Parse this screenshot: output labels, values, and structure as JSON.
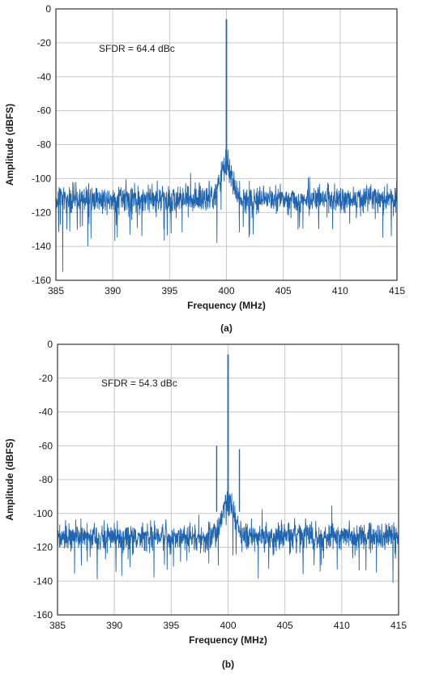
{
  "chart_data": [
    {
      "type": "line",
      "caption": "(a)",
      "xlabel": "Frequency (MHz)",
      "ylabel": "Amplitude (dBFS)",
      "xlim": [
        385,
        415
      ],
      "ylim": [
        -160,
        0
      ],
      "xticks": [
        385,
        390,
        395,
        400,
        405,
        410,
        415
      ],
      "yticks": [
        0,
        -20,
        -40,
        -60,
        -80,
        -100,
        -120,
        -140,
        -160
      ],
      "grid": true,
      "annotation": "SFDR = 64.4 dBc",
      "noise_floor_dbfs": -112,
      "noise_spread_db": 5,
      "hump": {
        "center": 400,
        "peak_dbfs": -92,
        "width_mhz": 0.7
      },
      "peaks": [
        {
          "x": 400,
          "y": -6
        }
      ],
      "dips": [
        {
          "x": 385.6,
          "y": -155
        },
        {
          "x": 387.8,
          "y": -140
        },
        {
          "x": 414.5,
          "y": -134
        }
      ],
      "color": "#1f64ae"
    },
    {
      "type": "line",
      "caption": "(b)",
      "xlabel": "Frequency (MHz)",
      "ylabel": "Amplitude (dBFS)",
      "xlim": [
        385,
        415
      ],
      "ylim": [
        -160,
        0
      ],
      "xticks": [
        385,
        390,
        395,
        400,
        405,
        410,
        415
      ],
      "yticks": [
        0,
        -20,
        -40,
        -60,
        -80,
        -100,
        -120,
        -140,
        -160
      ],
      "grid": true,
      "annotation": "SFDR = 54.3 dBc",
      "noise_floor_dbfs": -114,
      "noise_spread_db": 5,
      "hump": {
        "center": 400,
        "peak_dbfs": -93,
        "width_mhz": 0.8
      },
      "peaks": [
        {
          "x": 400,
          "y": -6
        },
        {
          "x": 399,
          "y": -60
        },
        {
          "x": 401,
          "y": -62
        }
      ],
      "dips": [
        {
          "x": 388.5,
          "y": -139
        },
        {
          "x": 414.5,
          "y": -141
        }
      ],
      "color": "#1f64ae"
    }
  ]
}
